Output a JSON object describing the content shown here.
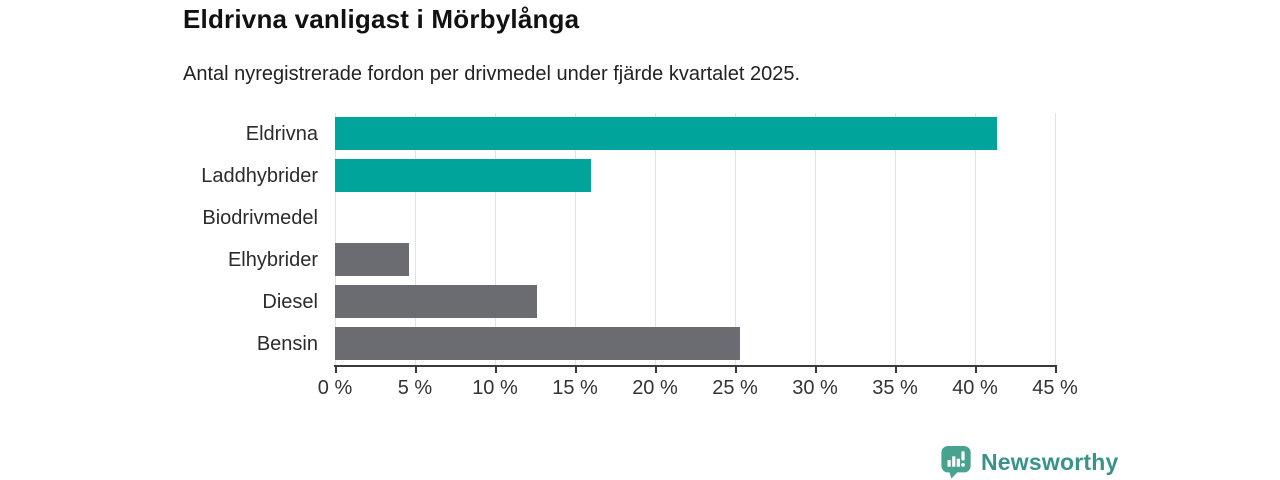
{
  "header": {
    "title": "Eldrivna vanligast i Mörbylånga",
    "subtitle": "Antal nyregistrerade fordon per drivmedel under fjärde kvartalet 2025."
  },
  "chart_data": {
    "type": "bar",
    "orientation": "horizontal",
    "title": "Eldrivna vanligast i Mörbylånga",
    "subtitle": "Antal nyregistrerade fordon per drivmedel under fjärde kvartalet 2025.",
    "categories": [
      "Eldrivna",
      "Laddhybrider",
      "Biodrivmedel",
      "Elhybrider",
      "Diesel",
      "Bensin"
    ],
    "values": [
      41.4,
      16.0,
      0,
      4.6,
      12.6,
      25.3
    ],
    "unit": "%",
    "bar_colors": [
      "#00a49a",
      "#00a49a",
      "#6b6b72",
      "#6b6b72",
      "#6b6b72",
      "#6b6b72"
    ],
    "xlim": [
      0,
      45
    ],
    "x_tick_values": [
      0,
      5,
      10,
      15,
      20,
      25,
      30,
      35,
      40,
      45
    ],
    "x_tick_labels": [
      "0 %",
      "5 %",
      "10 %",
      "15 %",
      "20 %",
      "25 %",
      "30 %",
      "35 %",
      "40 %",
      "45 %"
    ],
    "grid": true,
    "gridline_color": "#e2e2e2",
    "axis_color": "#3a3a3a",
    "accent_color": "#00a49a",
    "neutral_color": "#6b6b72",
    "legend": "none"
  },
  "footer": {
    "brand": "Newsworthy",
    "brand_color": "#38948a",
    "logo_icon": "newsworthy-speech-bubble-chart-icon",
    "logo_icon_color": "#47a38f"
  }
}
